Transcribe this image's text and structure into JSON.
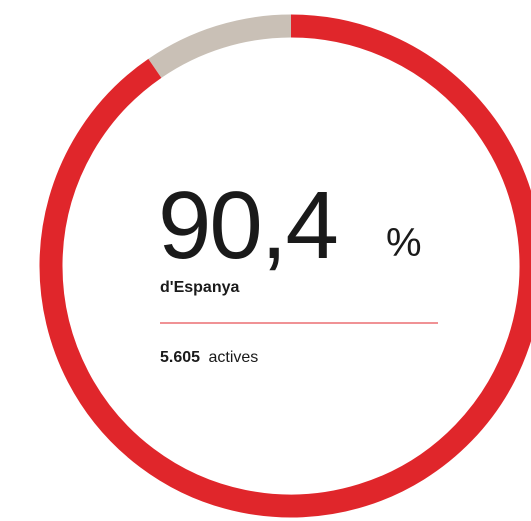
{
  "chart_data": {
    "type": "donut",
    "values": [
      90.4
    ],
    "value_labels": [
      "90,4"
    ],
    "unit": "%",
    "ylim": [
      0,
      100
    ],
    "label": "d'Espanya",
    "count": "5.605",
    "count_text": "actives",
    "color": "#e0262b",
    "rest_color": "#c9c0b6"
  }
}
